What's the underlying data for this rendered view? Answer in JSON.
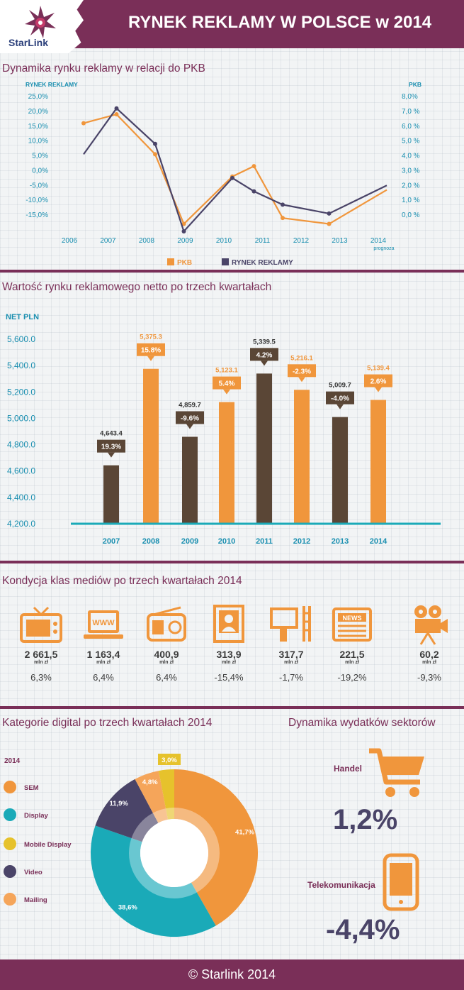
{
  "header": {
    "title": "RYNEK REKLAMY W POLSCE w 2014",
    "logo_text": "StarLink"
  },
  "colors": {
    "brand": "#7a2f58",
    "orange": "#f0963c",
    "brown": "#5a4636",
    "teal": "#1aaab8",
    "navy": "#4a4468",
    "yellow": "#e6c22c",
    "light_orange": "#f5a55a"
  },
  "section1": {
    "title": "Dynamika rynku reklamy w relacji do PKB"
  },
  "section2": {
    "title": "Wartość rynku reklamowego netto po trzech kwartałach"
  },
  "section3": {
    "title": "Kondycja klas mediów po trzech kwartałach 2014"
  },
  "section4": {
    "title": "Kategorie digital po trzech kwartałach 2014"
  },
  "section5": {
    "title": "Dynamika wydatków sektorów"
  },
  "chart_data": [
    {
      "type": "line",
      "title": "Dynamika rynku reklamy w relacji do PKB",
      "ylabel_left": "RYNEK REKLAMY",
      "ylabel_right": "PKB",
      "left_ticks": [
        "25,0%",
        "20,0%",
        "15,0%",
        "10,0%",
        "5,0%",
        "0,0%",
        "-5,0%",
        "-10,0%",
        "-15,0%"
      ],
      "right_ticks": [
        "8,0%",
        "7,0 %",
        "6,0 %",
        "5,0 %",
        "4,0 %",
        "3,0 %",
        "2,0 %",
        "1,0 %",
        "0,0 %"
      ],
      "categories": [
        "2006",
        "2007",
        "2008",
        "2009",
        "2010",
        "2011",
        "2012",
        "2013",
        "2014"
      ],
      "x_note": "prognoza",
      "series": [
        {
          "name": "PKB",
          "axis": "right",
          "color": "#f0963c",
          "values": [
            6.2,
            6.8,
            4.1,
            -0.6,
            2.6,
            3.3,
            -0.2,
            -0.6,
            1.7
          ]
        },
        {
          "name": "RYNEK REKLAMY",
          "axis": "left",
          "color": "#4a4468",
          "values": [
            5.5,
            21.0,
            9.0,
            -20.5,
            -2.5,
            -7.0,
            -11.5,
            -14.5,
            -5.0
          ]
        }
      ],
      "ylim_left": [
        -15,
        25
      ],
      "ylim_right": [
        0,
        8
      ],
      "legend": [
        "PKB",
        "RYNEK REKLAMY"
      ]
    },
    {
      "type": "bar",
      "title": "Wartość rynku reklamowego netto po trzech kwartałach",
      "ylabel": "NET PLN",
      "y_ticks": [
        "5,600.0",
        "5,400.0",
        "5,200.0",
        "5,000.0",
        "4,800.0",
        "4,600.0",
        "4,400.0",
        "4,200.0"
      ],
      "ylim": [
        4200,
        5600
      ],
      "categories": [
        "2007",
        "2008",
        "2009",
        "2010",
        "2011",
        "2012",
        "2013",
        "2014"
      ],
      "values": [
        4643.4,
        5375.3,
        4859.7,
        5123.1,
        5339.5,
        5216.1,
        5009.7,
        5139.4
      ],
      "value_labels": [
        "4,643.4",
        "5,375.3",
        "4,859.7",
        "5,123.1",
        "5,339.5",
        "5,216.1",
        "5,009.7",
        "5,139.4"
      ],
      "growth_labels": [
        "19.3%",
        "15.8%",
        "-9.6%",
        "5.4%",
        "4.2%",
        "-2.3%",
        "-4.0%",
        "2.6%"
      ],
      "colors": [
        "#5a4636",
        "#f0963c",
        "#5a4636",
        "#f0963c",
        "#5a4636",
        "#f0963c",
        "#5a4636",
        "#f0963c"
      ]
    },
    {
      "type": "pie",
      "title": "Kategorie digital po trzech kwartałach 2014",
      "legend_title": "2014",
      "labels": [
        "SEM",
        "Display",
        "Mobile Display",
        "Video",
        "Mailing"
      ],
      "values": [
        41.7,
        38.6,
        3.0,
        11.9,
        4.8
      ],
      "value_labels": [
        "41,7%",
        "38,6%",
        "3,0%",
        "11,9%",
        "4,8%"
      ],
      "colors": [
        "#f0963c",
        "#1aaab8",
        "#e6c22c",
        "#4a4468",
        "#f5a55a"
      ]
    }
  ],
  "media": [
    {
      "icon": "tv-icon",
      "value": "2 661,5",
      "unit": "mln zł",
      "pct": "6,3%"
    },
    {
      "icon": "laptop-www-icon",
      "value": "1 163,4",
      "unit": "mln zł",
      "pct": "6,4%"
    },
    {
      "icon": "radio-icon",
      "value": "400,9",
      "unit": "mln zł",
      "pct": "6,4%"
    },
    {
      "icon": "magazine-icon",
      "value": "313,9",
      "unit": "mln zł",
      "pct": "-15,4%"
    },
    {
      "icon": "billboard-icon",
      "value": "317,7",
      "unit": "mln zł",
      "pct": "-1,7%"
    },
    {
      "icon": "newspaper-icon",
      "value": "221,5",
      "unit": "mln zł",
      "pct": "-19,2%"
    },
    {
      "icon": "cinema-camera-icon",
      "value": "60,2",
      "unit": "mln zł",
      "pct": "-9,3%"
    }
  ],
  "media_icon_text": {
    "www": "WWW",
    "news": "NEWS"
  },
  "sectors": [
    {
      "label": "Handel",
      "value": "1,2%"
    },
    {
      "label": "Telekomunikacja",
      "value": "-4,4%"
    }
  ],
  "footer": {
    "text": "© Starlink 2014"
  }
}
